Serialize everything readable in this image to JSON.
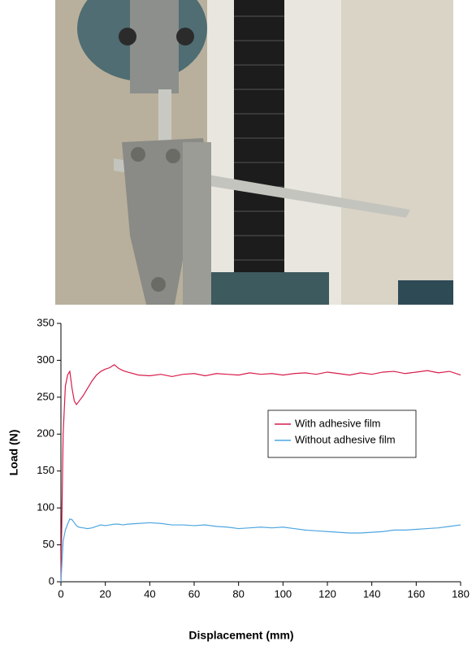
{
  "chart_data": {
    "type": "line",
    "x_label": "Displacement (mm)",
    "y_label": "Load (N)",
    "x": [
      0,
      1,
      2,
      3,
      4,
      5,
      6,
      7,
      8,
      10,
      12,
      14,
      16,
      18,
      20,
      22,
      24,
      26,
      28,
      30,
      35,
      40,
      45,
      50,
      55,
      60,
      65,
      70,
      75,
      80,
      85,
      90,
      95,
      100,
      105,
      110,
      115,
      120,
      125,
      130,
      135,
      140,
      145,
      150,
      155,
      160,
      165,
      170,
      175,
      180
    ],
    "series": [
      {
        "name": "With adhesive film",
        "color": "#d81b4a",
        "values": [
          0,
          200,
          265,
          280,
          285,
          262,
          245,
          240,
          244,
          252,
          262,
          272,
          280,
          285,
          288,
          290,
          294,
          289,
          286,
          284,
          280,
          279,
          281,
          278,
          281,
          282,
          279,
          282,
          281,
          280,
          283,
          281,
          282,
          280,
          282,
          283,
          281,
          284,
          282,
          280,
          283,
          281,
          284,
          285,
          282,
          284,
          286,
          283,
          285,
          280
        ]
      },
      {
        "name": "Without adhesive film",
        "color": "#4ea6e0",
        "values": [
          0,
          55,
          70,
          78,
          85,
          84,
          80,
          76,
          74,
          73,
          72,
          73,
          75,
          77,
          76,
          77,
          78,
          78,
          77,
          78,
          79,
          80,
          79,
          77,
          77,
          76,
          77,
          75,
          74,
          72,
          73,
          74,
          73,
          74,
          72,
          70,
          69,
          68,
          67,
          66,
          66,
          67,
          68,
          70,
          70,
          71,
          72,
          73,
          75,
          77
        ]
      }
    ],
    "xlim": [
      0,
      180
    ],
    "xticks": [
      0,
      20,
      40,
      60,
      80,
      100,
      120,
      140,
      160,
      180
    ],
    "ylim": [
      0,
      350
    ],
    "yticks": [
      0,
      50,
      100,
      150,
      200,
      250,
      300,
      350
    ],
    "legend": "right"
  }
}
